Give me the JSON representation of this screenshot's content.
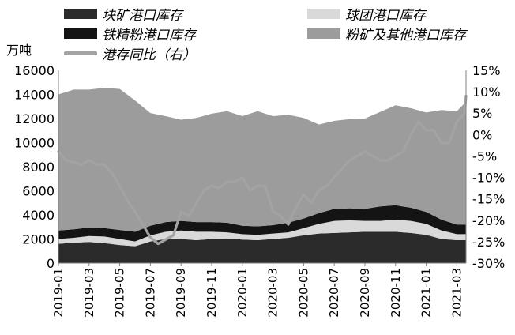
{
  "chart_data": {
    "type": "area",
    "unit_left": "万吨",
    "x_ticks": [
      "2019-01",
      "2019-03",
      "2019-05",
      "2019-07",
      "2019-09",
      "2019-11",
      "2020-01",
      "2020-03",
      "2020-05",
      "2020-07",
      "2020-09",
      "2020-11",
      "2021-01",
      "2021-03"
    ],
    "y_left": {
      "min": 0,
      "max": 16000,
      "ticks": [
        0,
        2000,
        4000,
        6000,
        8000,
        10000,
        12000,
        14000,
        16000
      ]
    },
    "y_right": {
      "min": -30,
      "max": 15,
      "ticks": [
        "-30%",
        "-25%",
        "-20%",
        "-15%",
        "-10%",
        "-5%",
        "0%",
        "5%",
        "10%",
        "15%"
      ],
      "tick_values": [
        -30,
        -25,
        -20,
        -15,
        -10,
        -5,
        0,
        5,
        10,
        15
      ]
    },
    "x_range": [
      0,
      26.6
    ],
    "x": [
      0,
      1,
      2,
      3,
      4,
      5,
      6,
      7,
      8,
      9,
      10,
      11,
      12,
      13,
      14,
      15,
      16,
      17,
      18,
      19,
      20,
      21,
      22,
      23,
      24,
      25,
      26,
      26.6
    ],
    "series": [
      {
        "name": "块矿港口库存",
        "color": "#2b2b2b",
        "values": [
          1600,
          1700,
          1750,
          1650,
          1500,
          1400,
          1800,
          2000,
          2000,
          1900,
          2000,
          2050,
          1950,
          1900,
          2000,
          2100,
          2300,
          2450,
          2500,
          2550,
          2600,
          2600,
          2600,
          2500,
          2350,
          2000,
          1900,
          1900
        ]
      },
      {
        "name": "球团港口库存",
        "color": "#d9d9d9",
        "values": [
          400,
          400,
          500,
          550,
          500,
          400,
          500,
          600,
          700,
          700,
          600,
          500,
          450,
          450,
          450,
          450,
          600,
          800,
          1000,
          1000,
          900,
          900,
          1000,
          1000,
          900,
          700,
          500,
          500
        ]
      },
      {
        "name": "铁精粉港口库存",
        "color": "#141414",
        "values": [
          700,
          700,
          700,
          700,
          750,
          800,
          800,
          800,
          800,
          800,
          800,
          800,
          700,
          700,
          700,
          800,
          800,
          900,
          1000,
          1000,
          1000,
          1200,
          1200,
          1100,
          1000,
          900,
          800,
          800
        ]
      },
      {
        "name": "粉矿及其他港口库存",
        "color": "#9c9c9c",
        "values": [
          11300,
          11600,
          11450,
          11650,
          11700,
          10900,
          9350,
          8800,
          8400,
          8650,
          9000,
          9250,
          9100,
          9550,
          9050,
          8950,
          8350,
          7350,
          7300,
          7400,
          7500,
          7850,
          8300,
          8250,
          8250,
          9100,
          9400,
          10200
        ]
      }
    ],
    "line": {
      "name": "港存同比（右）",
      "color": "#a3a3a3",
      "axis": "right",
      "x": [
        0,
        0.5,
        1,
        1.5,
        2,
        2.5,
        3,
        3.5,
        4,
        4.6,
        5,
        5.5,
        6,
        6.5,
        7,
        7.5,
        8,
        8.5,
        9,
        9.5,
        10,
        10.5,
        11,
        11.5,
        12,
        12.5,
        13,
        13.5,
        14,
        14.5,
        15,
        15.5,
        16,
        16.5,
        17,
        17.5,
        18,
        18.5,
        19,
        19.5,
        20,
        20.5,
        21,
        21.5,
        22,
        22.5,
        23,
        23.5,
        24,
        24.5,
        25,
        25.5,
        26,
        26.5,
        26.6
      ],
      "values": [
        -4,
        -6,
        -6.5,
        -7,
        -6,
        -7,
        -7,
        -9,
        -12,
        -16,
        -18,
        -21,
        -24,
        -25.5,
        -24.5,
        -23.5,
        -18,
        -19,
        -16,
        -13,
        -12,
        -12.5,
        -11,
        -11,
        -10,
        -13,
        -12,
        -12,
        -18,
        -19,
        -21,
        -17,
        -14,
        -16,
        -13,
        -12,
        -10,
        -8,
        -6,
        -5,
        -4,
        -5,
        -6,
        -6,
        -5,
        -4,
        0,
        3,
        1,
        1,
        -2,
        -2,
        3,
        5,
        9
      ]
    }
  }
}
